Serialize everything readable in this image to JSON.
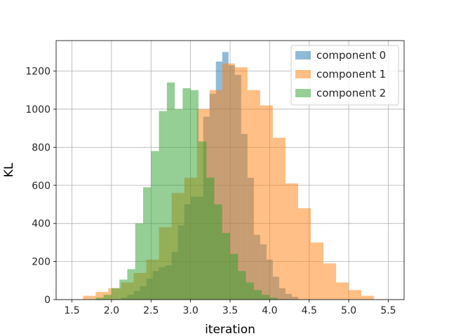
{
  "chart_data": {
    "type": "bar",
    "subtype": "overlapping-histogram",
    "xlabel": "iteration",
    "ylabel": "KL",
    "xlim": [
      1.3,
      5.7
    ],
    "ylim": [
      0,
      1360
    ],
    "xticks": [
      1.5,
      2.0,
      2.5,
      3.0,
      3.5,
      4.0,
      4.5,
      5.0,
      5.5
    ],
    "yticks": [
      0,
      200,
      400,
      600,
      800,
      1000,
      1200
    ],
    "grid": true,
    "legend": "top-right",
    "opacity": 0.5,
    "series": [
      {
        "name": "component 0",
        "color": "#1f77b4",
        "bin_width": 0.08,
        "bins": [
          [
            2.12,
            2.2,
            10
          ],
          [
            2.2,
            2.28,
            25
          ],
          [
            2.28,
            2.36,
            45
          ],
          [
            2.36,
            2.44,
            70
          ],
          [
            2.44,
            2.52,
            110
          ],
          [
            2.52,
            2.6,
            150
          ],
          [
            2.6,
            2.68,
            170
          ],
          [
            2.68,
            2.76,
            180
          ],
          [
            2.76,
            2.84,
            250
          ],
          [
            2.84,
            2.92,
            390
          ],
          [
            2.92,
            3.0,
            500
          ],
          [
            3.0,
            3.08,
            540
          ],
          [
            3.08,
            3.16,
            540
          ],
          [
            3.16,
            3.24,
            960
          ],
          [
            3.24,
            3.32,
            1080
          ],
          [
            3.32,
            3.4,
            1250
          ],
          [
            3.4,
            3.48,
            1300
          ],
          [
            3.48,
            3.56,
            1230
          ],
          [
            3.56,
            3.64,
            1180
          ],
          [
            3.64,
            3.72,
            870
          ],
          [
            3.72,
            3.8,
            640
          ],
          [
            3.8,
            3.88,
            340
          ],
          [
            3.88,
            3.96,
            290
          ],
          [
            3.96,
            4.04,
            210
          ],
          [
            4.04,
            4.12,
            120
          ],
          [
            4.12,
            4.2,
            60
          ],
          [
            4.2,
            4.28,
            30
          ],
          [
            4.28,
            4.36,
            15
          ]
        ]
      },
      {
        "name": "component 1",
        "color": "#ff7f0e",
        "bin_width": 0.16,
        "bins": [
          [
            1.64,
            1.8,
            20
          ],
          [
            1.8,
            1.96,
            40
          ],
          [
            1.96,
            2.12,
            60
          ],
          [
            2.12,
            2.28,
            90
          ],
          [
            2.28,
            2.44,
            140
          ],
          [
            2.44,
            2.6,
            210
          ],
          [
            2.6,
            2.76,
            380
          ],
          [
            2.76,
            2.92,
            560
          ],
          [
            2.92,
            3.08,
            640
          ],
          [
            3.08,
            3.24,
            1000
          ],
          [
            3.24,
            3.4,
            1100
          ],
          [
            3.4,
            3.56,
            1240
          ],
          [
            3.56,
            3.72,
            1220
          ],
          [
            3.72,
            3.88,
            1100
          ],
          [
            3.88,
            4.04,
            1020
          ],
          [
            4.04,
            4.2,
            850
          ],
          [
            4.2,
            4.36,
            610
          ],
          [
            4.36,
            4.52,
            480
          ],
          [
            4.52,
            4.68,
            300
          ],
          [
            4.68,
            4.84,
            190
          ],
          [
            4.84,
            5.0,
            90
          ],
          [
            5.0,
            5.16,
            50
          ],
          [
            5.16,
            5.32,
            20
          ]
        ]
      },
      {
        "name": "component 2",
        "color": "#2ca02c",
        "bin_width": 0.1,
        "bins": [
          [
            1.8,
            1.9,
            10
          ],
          [
            1.9,
            2.0,
            25
          ],
          [
            2.0,
            2.1,
            60
          ],
          [
            2.1,
            2.2,
            105
          ],
          [
            2.2,
            2.3,
            160
          ],
          [
            2.3,
            2.4,
            400
          ],
          [
            2.4,
            2.5,
            590
          ],
          [
            2.5,
            2.6,
            780
          ],
          [
            2.6,
            2.7,
            990
          ],
          [
            2.7,
            2.8,
            1140
          ],
          [
            2.8,
            2.9,
            1000
          ],
          [
            2.9,
            3.0,
            1110
          ],
          [
            3.0,
            3.1,
            1100
          ],
          [
            3.1,
            3.2,
            830
          ],
          [
            3.2,
            3.3,
            640
          ],
          [
            3.3,
            3.4,
            500
          ],
          [
            3.4,
            3.5,
            350
          ],
          [
            3.5,
            3.6,
            240
          ],
          [
            3.6,
            3.7,
            150
          ],
          [
            3.7,
            3.8,
            90
          ],
          [
            3.8,
            3.9,
            50
          ],
          [
            3.9,
            4.0,
            25
          ],
          [
            4.0,
            4.1,
            10
          ]
        ]
      }
    ]
  }
}
